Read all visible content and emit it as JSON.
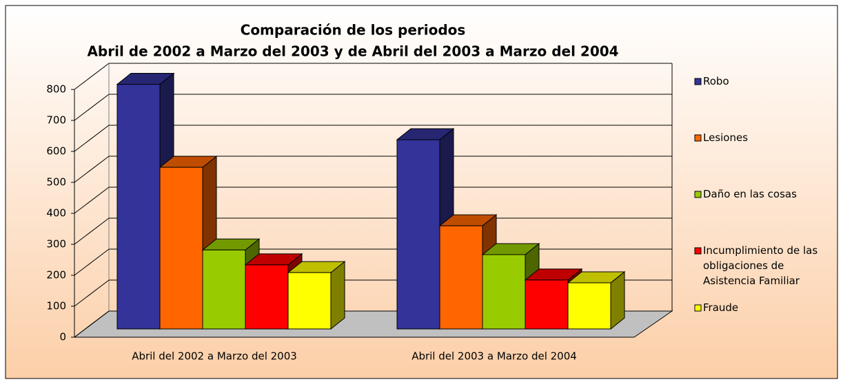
{
  "chart_data": {
    "type": "bar3d",
    "title": "Comparación de los periodos",
    "subtitle": "Abril de 2002 a Marzo del 2003 y de Abril del 2003 a Marzo del 2004",
    "categories": [
      "Abril del 2002 a Marzo del 2003",
      "Abril del 2003 a Marzo del 2004"
    ],
    "series": [
      {
        "name": "Robo",
        "color": "#333399",
        "values": [
          790,
          611
        ]
      },
      {
        "name": "Lesiones",
        "color": "#ff6600",
        "values": [
          522,
          333
        ]
      },
      {
        "name": "Daño en las cosas",
        "color": "#99cc00",
        "values": [
          255,
          240
        ]
      },
      {
        "name": "Incumplimiento de las obligaciones de Asistencia Familiar",
        "color": "#ff0000",
        "values": [
          207,
          158
        ]
      },
      {
        "name": "Fraude",
        "color": "#ffff00",
        "values": [
          182,
          149
        ]
      }
    ],
    "ylim": [
      0,
      800
    ],
    "yticks": [
      0,
      100,
      200,
      300,
      400,
      500,
      600,
      700,
      800
    ],
    "grid": true,
    "legend": "right"
  }
}
